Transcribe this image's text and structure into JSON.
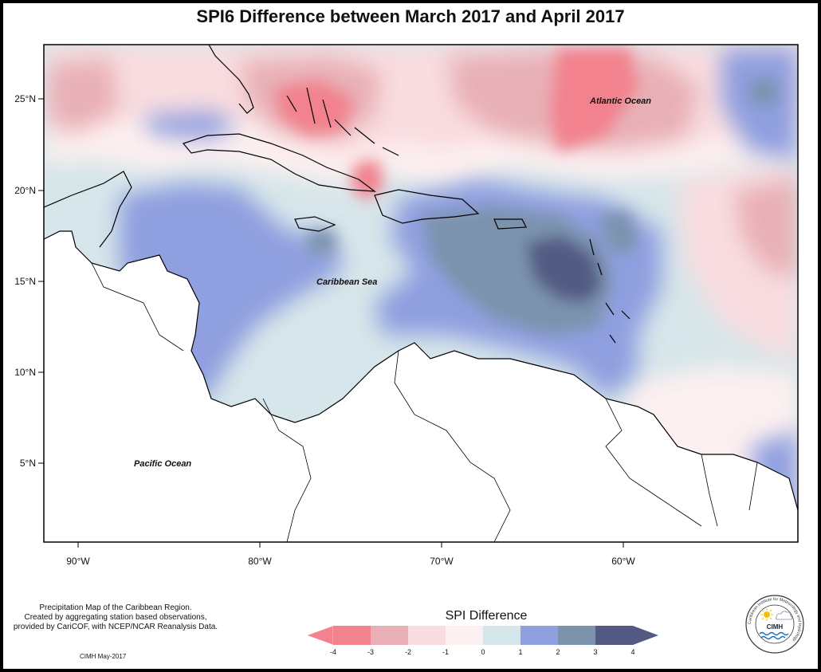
{
  "title": "SPI6 Difference between March 2017 and April 2017",
  "map": {
    "x_ticks": [
      "90°W",
      "80°W",
      "70°W",
      "60°W"
    ],
    "y_ticks": [
      "25°N",
      "20°N",
      "15°N",
      "10°N",
      "5°N"
    ],
    "labels": {
      "atlantic": "Atlantic Ocean",
      "caribbean": "Caribbean Sea",
      "pacific": "Pacific Ocean"
    },
    "background_color": "#d7e6ea",
    "land_color": "#ffffff"
  },
  "legend": {
    "title": "SPI Difference",
    "ticks": [
      "-4",
      "-3",
      "-2",
      "-1",
      "0",
      "1",
      "2",
      "3",
      "4"
    ],
    "colors": [
      "#f2828e",
      "#e8b0b6",
      "#f9dde0",
      "#fdf0f0",
      "#d7e6ea",
      "#8f9fdf",
      "#7c93ad",
      "#525a84"
    ]
  },
  "note": {
    "line1": "Precipitation Map of the Caribbean Region.",
    "line2": "Created by aggregating station based observations,",
    "line3": "provided by CariCOF, with NCEP/NCAR Reanalysis Data."
  },
  "credit": "CIMH May-2017",
  "logo": {
    "name": "CIMH",
    "ring_text": "Caribbean Institute for Meteorology and Hydrology"
  }
}
